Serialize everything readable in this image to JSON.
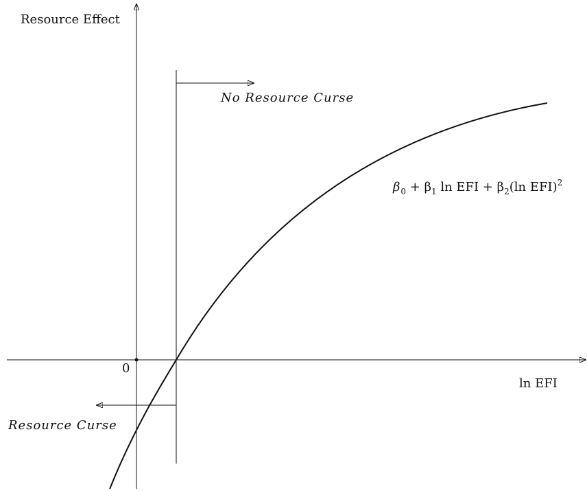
{
  "axes": {
    "y_label": "Resource Effect",
    "x_label": "ln EFI",
    "origin": "0"
  },
  "regions": {
    "right": "No Resource Curse",
    "left": "Resource Curse"
  },
  "formula": {
    "parts": [
      "β",
      "0",
      " + β",
      "1",
      " ln EFI + β",
      "2",
      "(ln EFI)",
      "2"
    ]
  }
}
